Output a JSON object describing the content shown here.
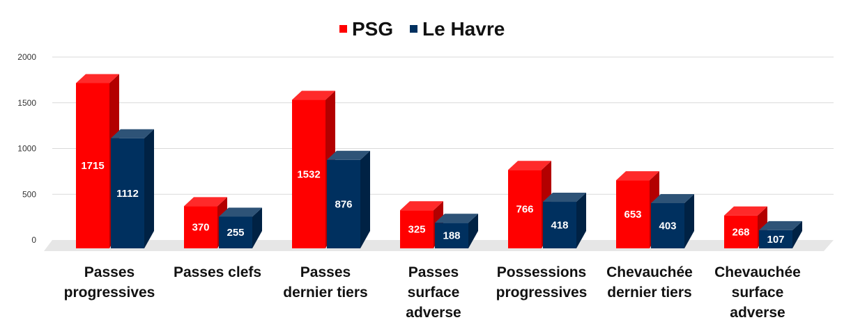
{
  "chart_data": {
    "type": "bar",
    "categories": [
      [
        "Passes",
        "progressives"
      ],
      [
        "Passes clefs"
      ],
      [
        "Passes",
        "dernier tiers"
      ],
      [
        "Passes",
        "surface",
        "adverse"
      ],
      [
        "Possessions",
        "progressives"
      ],
      [
        "Chevauchée",
        "dernier tiers"
      ],
      [
        "Chevauchée",
        "surface",
        "adverse"
      ]
    ],
    "series": [
      {
        "name": "PSG",
        "values": [
          1715,
          370,
          1532,
          325,
          766,
          653,
          268
        ]
      },
      {
        "name": "Le Havre",
        "values": [
          1112,
          255,
          876,
          188,
          418,
          403,
          107
        ]
      }
    ],
    "ylim": [
      0,
      2000
    ],
    "yticks": [
      0,
      500,
      1000,
      1500,
      2000
    ],
    "legend": "top-center",
    "grid": true,
    "colors": {
      "PSG": {
        "front": "#ff0000",
        "top": "#ff2a2a",
        "side": "#b30000"
      },
      "Le Havre": {
        "front": "#00305f",
        "top": "#2e5377",
        "side": "#002244"
      },
      "grid": "#d9d9d9",
      "floor": "#e6e6e6"
    }
  }
}
